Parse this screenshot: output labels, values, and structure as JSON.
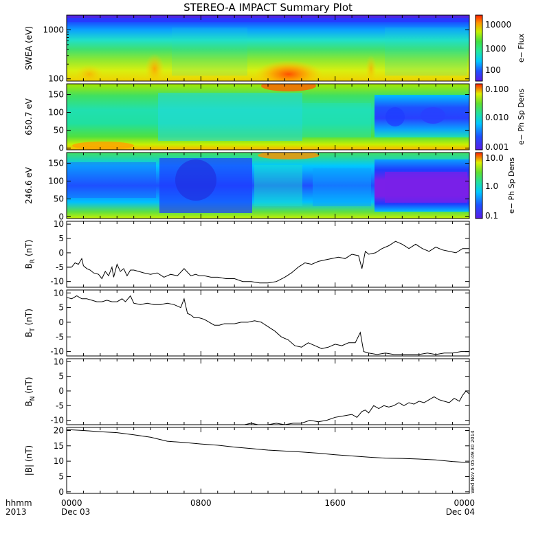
{
  "title": "STEREO-A IMPACT Summary Plot",
  "stamp": "Wed Nov  5 05:49:30 2014",
  "time_axis": {
    "row1_label": "hhmm",
    "row2_label": "2013",
    "ticks": [
      {
        "t": 0,
        "line1": "0000",
        "line2": "Dec 03"
      },
      {
        "t": 8,
        "line1": "0800",
        "line2": ""
      },
      {
        "t": 16,
        "line1": "1600",
        "line2": ""
      },
      {
        "t": 24,
        "line1": "0000",
        "line2": "Dec 04"
      }
    ],
    "minor_step_hours": 1,
    "range_hours": [
      0,
      24
    ]
  },
  "colorbars": [
    {
      "label": "e− Flux",
      "ticks": [
        "10000",
        "1000",
        "100"
      ],
      "tick_values": [
        10000,
        1000,
        100
      ],
      "range": [
        50,
        20000
      ],
      "scale": "log"
    },
    {
      "label": "e− Ph Sp Dens",
      "ticks": [
        "0.100",
        "0.010",
        "0.001"
      ],
      "tick_values": [
        0.1,
        0.01,
        0.001
      ],
      "range": [
        0.001,
        0.1
      ],
      "scale": "log"
    },
    {
      "label": "e− Ph Sp Dens",
      "ticks": [
        "10.0",
        "1.0",
        "0.1"
      ],
      "tick_values": [
        10,
        1,
        0.1
      ],
      "range": [
        0.1,
        10
      ],
      "scale": "log"
    }
  ],
  "chart_data": [
    {
      "type": "heatmap",
      "ylabel": "SWEA (eV)",
      "yscale": "log",
      "ylim": [
        90,
        2000
      ],
      "yticks": [
        "1000",
        "100"
      ],
      "ytick_values": [
        1000,
        100
      ],
      "colorbar": "e− Flux",
      "note": "spectrogram: energy vs time"
    },
    {
      "type": "heatmap",
      "ylabel": "650.7 eV",
      "ylim": [
        -5,
        180
      ],
      "yticks": [
        "150",
        "100",
        "50",
        "0"
      ],
      "ytick_values": [
        150,
        100,
        50,
        0
      ],
      "colorbar": "e− Ph Sp Dens",
      "note": "pitch-angle distribution"
    },
    {
      "type": "heatmap",
      "ylabel": "246.6 eV",
      "ylim": [
        -5,
        180
      ],
      "yticks": [
        "150",
        "100",
        "50",
        "0"
      ],
      "ytick_values": [
        150,
        100,
        50,
        0
      ],
      "colorbar": "e− Ph Sp Dens",
      "note": "pitch-angle distribution"
    },
    {
      "type": "line",
      "ylabel_main": "B",
      "ylabel_sub": "R",
      "ylabel_unit": " (nT)",
      "ylim": [
        -12,
        11
      ],
      "yticks": [
        10,
        5,
        0,
        -5,
        -10
      ],
      "x": [
        0,
        0.3,
        0.5,
        0.7,
        0.9,
        1.0,
        1.2,
        1.4,
        1.6,
        1.9,
        2.1,
        2.3,
        2.5,
        2.7,
        2.8,
        3.0,
        3.2,
        3.4,
        3.6,
        3.8,
        4.0,
        4.3,
        4.6,
        5.0,
        5.4,
        5.8,
        6.2,
        6.6,
        7.0,
        7.4,
        7.7,
        7.9,
        8.2,
        8.6,
        9.0,
        9.5,
        10.0,
        10.5,
        11.0,
        11.5,
        12.0,
        12.5,
        13.0,
        13.4,
        13.8,
        14.2,
        14.6,
        15.0,
        15.4,
        15.8,
        16.2,
        16.6,
        17.0,
        17.4,
        17.6,
        17.8,
        18.0,
        18.4,
        18.8,
        19.2,
        19.6,
        20.0,
        20.4,
        20.8,
        21.2,
        21.6,
        22.0,
        22.4,
        22.8,
        23.2,
        23.6,
        24.0
      ],
      "values": [
        -5,
        -5,
        -3.5,
        -4,
        -2,
        -4.5,
        -5.5,
        -6,
        -7,
        -7.5,
        -9,
        -6.5,
        -8,
        -5,
        -8.5,
        -4,
        -6.5,
        -5.5,
        -8,
        -6,
        -6,
        -6.5,
        -7,
        -7.5,
        -7,
        -8.5,
        -7.5,
        -8,
        -5.5,
        -8,
        -7.5,
        -8,
        -8,
        -8.5,
        -8.5,
        -9,
        -9,
        -10,
        -10,
        -10.5,
        -10.5,
        -10,
        -8.5,
        -7,
        -5,
        -3.5,
        -4,
        -3,
        -2.5,
        -2,
        -1.5,
        -2,
        -0.5,
        -1,
        -5.5,
        0.5,
        -0.5,
        0,
        1.5,
        2.5,
        4,
        3,
        1.5,
        3,
        1.5,
        0.5,
        2,
        1,
        0.5,
        0,
        1.5,
        1.5
      ]
    },
    {
      "type": "line",
      "ylabel_main": "B",
      "ylabel_sub": "T",
      "ylabel_unit": " (nT)",
      "ylim": [
        -11.5,
        11
      ],
      "yticks": [
        10,
        5,
        0,
        -5,
        -10
      ],
      "x": [
        0,
        0.3,
        0.6,
        0.9,
        1.2,
        1.5,
        1.8,
        2.1,
        2.4,
        2.7,
        3.0,
        3.3,
        3.5,
        3.8,
        4.0,
        4.4,
        4.8,
        5.2,
        5.6,
        6.0,
        6.4,
        6.8,
        7.0,
        7.2,
        7.4,
        7.6,
        7.9,
        8.2,
        8.5,
        8.8,
        9.1,
        9.4,
        9.7,
        10.0,
        10.4,
        10.8,
        11.2,
        11.6,
        12.0,
        12.4,
        12.8,
        13.2,
        13.6,
        14.0,
        14.4,
        14.8,
        15.2,
        15.6,
        16.0,
        16.4,
        16.8,
        17.2,
        17.5,
        17.7,
        18.0,
        18.5,
        19.0,
        19.5,
        20.0,
        20.5,
        21.0,
        21.5,
        22.0,
        22.5,
        23.0,
        23.5,
        24.0
      ],
      "values": [
        8.5,
        8,
        9,
        8,
        8,
        7.5,
        7,
        7,
        7.5,
        7,
        7,
        8,
        7,
        9,
        6.5,
        6,
        6.5,
        6,
        6,
        6.5,
        6,
        5,
        8,
        3,
        2.5,
        1.5,
        1.5,
        1,
        0,
        -1,
        -1,
        -0.5,
        -0.5,
        -0.5,
        0,
        0,
        0.5,
        0,
        -1.5,
        -3,
        -5,
        -6,
        -8,
        -8.5,
        -7,
        -8,
        -9,
        -8.5,
        -7.5,
        -8,
        -7,
        -7,
        -3.5,
        -10,
        -10.5,
        -11,
        -10.5,
        -11,
        -11,
        -11,
        -11,
        -10.5,
        -11,
        -10.5,
        -10.5,
        -10,
        -10
      ]
    },
    {
      "type": "line",
      "ylabel_main": "B",
      "ylabel_sub": "N",
      "ylabel_unit": " (nT)",
      "ylim": [
        -11.5,
        11
      ],
      "yticks": [
        10,
        5,
        0,
        -5,
        -10
      ],
      "x": [
        10.6,
        11.0,
        11.4,
        12.0,
        12.5,
        13.0,
        13.5,
        14.0,
        14.5,
        15.0,
        15.5,
        16.0,
        16.5,
        17.0,
        17.3,
        17.6,
        17.8,
        18.0,
        18.3,
        18.6,
        18.9,
        19.2,
        19.5,
        19.8,
        20.1,
        20.4,
        20.7,
        21.0,
        21.3,
        21.6,
        21.9,
        22.2,
        22.5,
        22.8,
        23.1,
        23.4,
        23.6,
        23.8,
        24.0
      ],
      "values": [
        -12,
        -11,
        -12,
        -12,
        -11,
        -11.5,
        -11,
        -11,
        -10,
        -10.5,
        -10,
        -9,
        -8.5,
        -8,
        -9,
        -7,
        -6.5,
        -7.5,
        -5,
        -6,
        -5,
        -5.5,
        -5,
        -4,
        -5,
        -4,
        -4.5,
        -3.5,
        -4,
        -3,
        -2,
        -3,
        -3.5,
        -4,
        -2.5,
        -3.5,
        -1.5,
        0,
        -1
      ]
    },
    {
      "type": "line",
      "ylabel": "|B| (nT)",
      "ylim": [
        -0.5,
        21
      ],
      "yticks": [
        20,
        15,
        10,
        5,
        0
      ],
      "x": [
        0,
        1,
        2,
        3,
        4,
        5,
        6,
        7,
        8,
        9,
        10,
        11,
        12,
        13,
        14,
        15,
        16,
        17,
        18,
        19,
        20,
        21,
        22,
        23,
        24
      ],
      "values": [
        20.3,
        20,
        19.6,
        19.3,
        18.6,
        17.8,
        16.5,
        16.1,
        15.6,
        15.2,
        14.6,
        14.1,
        13.6,
        13.3,
        13,
        12.6,
        12.1,
        11.7,
        11.3,
        11,
        10.9,
        10.7,
        10.4,
        9.9,
        9.5
      ]
    }
  ]
}
